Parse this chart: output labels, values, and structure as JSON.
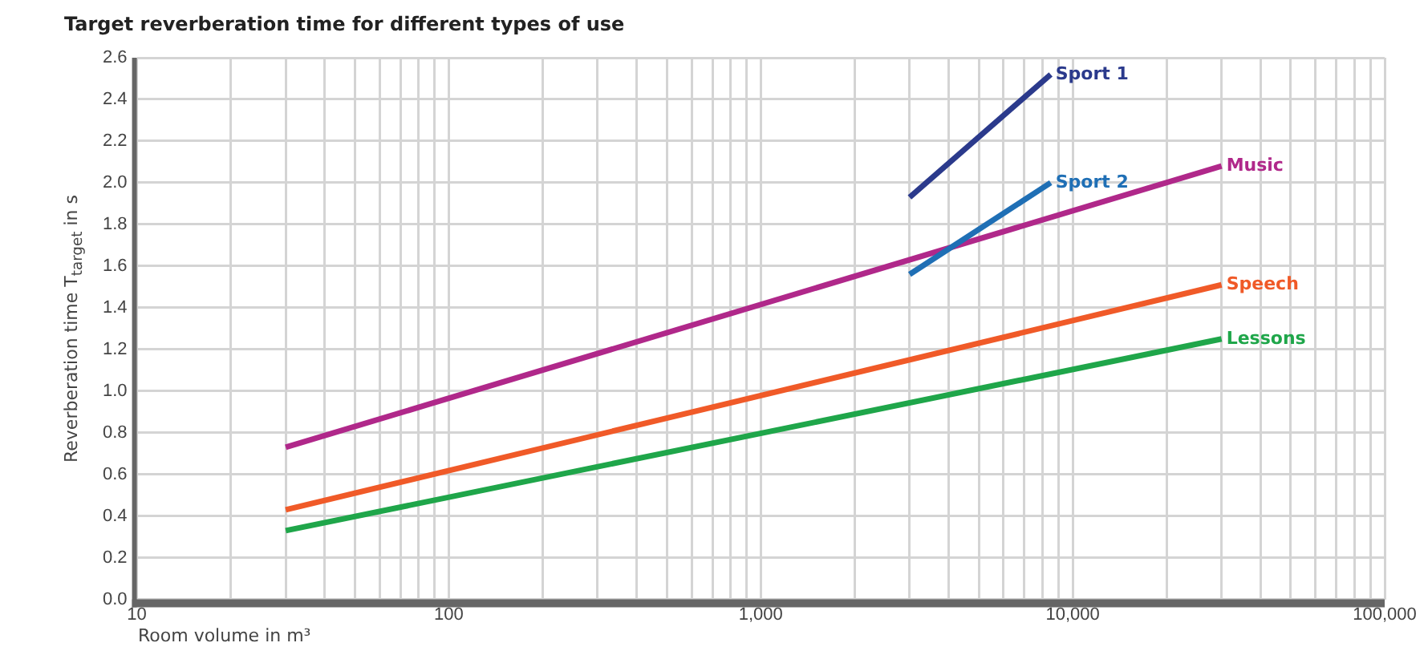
{
  "chart_data": {
    "type": "line",
    "title": "Target reverberation time for different types of use",
    "xlabel": "Room volume in m³",
    "ylabel": "Reverberation time T$_{target}$ in s",
    "log": "x",
    "grid": true,
    "legend": false,
    "marker": "none",
    "line_style": "solid",
    "xlim": [
      10,
      100000
    ],
    "xticks": [
      {
        "value": 10,
        "label": "10"
      },
      {
        "value": 20,
        "label": null
      },
      {
        "value": 30,
        "label": null
      },
      {
        "value": 40,
        "label": null
      },
      {
        "value": 50,
        "label": null
      },
      {
        "value": 60,
        "label": null
      },
      {
        "value": 70,
        "label": null
      },
      {
        "value": 80,
        "label": null
      },
      {
        "value": 90,
        "label": null
      },
      {
        "value": 100,
        "label": "100"
      },
      {
        "value": 200,
        "label": null
      },
      {
        "value": 300,
        "label": null
      },
      {
        "value": 400,
        "label": null
      },
      {
        "value": 500,
        "label": null
      },
      {
        "value": 600,
        "label": null
      },
      {
        "value": 700,
        "label": null
      },
      {
        "value": 800,
        "label": null
      },
      {
        "value": 900,
        "label": null
      },
      {
        "value": 1000,
        "label": "1,000"
      },
      {
        "value": 2000,
        "label": null
      },
      {
        "value": 3000,
        "label": null
      },
      {
        "value": 4000,
        "label": null
      },
      {
        "value": 5000,
        "label": null
      },
      {
        "value": 6000,
        "label": null
      },
      {
        "value": 7000,
        "label": null
      },
      {
        "value": 8000,
        "label": null
      },
      {
        "value": 9000,
        "label": null
      },
      {
        "value": 10000,
        "label": "10,000"
      },
      {
        "value": 20000,
        "label": null
      },
      {
        "value": 30000,
        "label": null
      },
      {
        "value": 40000,
        "label": null
      },
      {
        "value": 50000,
        "label": null
      },
      {
        "value": 60000,
        "label": null
      },
      {
        "value": 70000,
        "label": null
      },
      {
        "value": 80000,
        "label": null
      },
      {
        "value": 90000,
        "label": null
      },
      {
        "value": 100000,
        "label": "100,000"
      }
    ],
    "ylim": [
      0,
      2.6
    ],
    "yticks": [
      {
        "value": 0,
        "label": "0.0"
      },
      {
        "value": 0.2,
        "label": "0.2"
      },
      {
        "value": 0.4,
        "label": "0.4"
      },
      {
        "value": 0.6,
        "label": "0.6"
      },
      {
        "value": 0.8,
        "label": "0.8"
      },
      {
        "value": 1,
        "label": "1.0"
      },
      {
        "value": 1.2,
        "label": "1.2"
      },
      {
        "value": 1.4,
        "label": "1.4"
      },
      {
        "value": 1.6,
        "label": "1.6"
      },
      {
        "value": 1.8,
        "label": "1.8"
      },
      {
        "value": 2,
        "label": "2.0"
      },
      {
        "value": 2.2,
        "label": "2.2"
      },
      {
        "value": 2.4,
        "label": "2.4"
      },
      {
        "value": 2.6,
        "label": "2.6"
      }
    ],
    "series": [
      {
        "name": "Sport 1",
        "color": "#2b3a8c",
        "x": [
          3000,
          8500
        ],
        "values": [
          1.93,
          2.52
        ]
      },
      {
        "name": "Sport 2",
        "color": "#1f6fb5",
        "x": [
          3000,
          8500
        ],
        "values": [
          1.56,
          2.0
        ]
      },
      {
        "name": "Music",
        "color": "#b0288a",
        "x": [
          30,
          30000
        ],
        "values": [
          0.73,
          2.08
        ]
      },
      {
        "name": "Speech",
        "color": "#f05a28",
        "x": [
          30,
          30000
        ],
        "values": [
          0.43,
          1.51
        ]
      },
      {
        "name": "Lessons",
        "color": "#1fa64a",
        "x": [
          30,
          30000
        ],
        "values": [
          0.33,
          1.25
        ]
      }
    ]
  }
}
